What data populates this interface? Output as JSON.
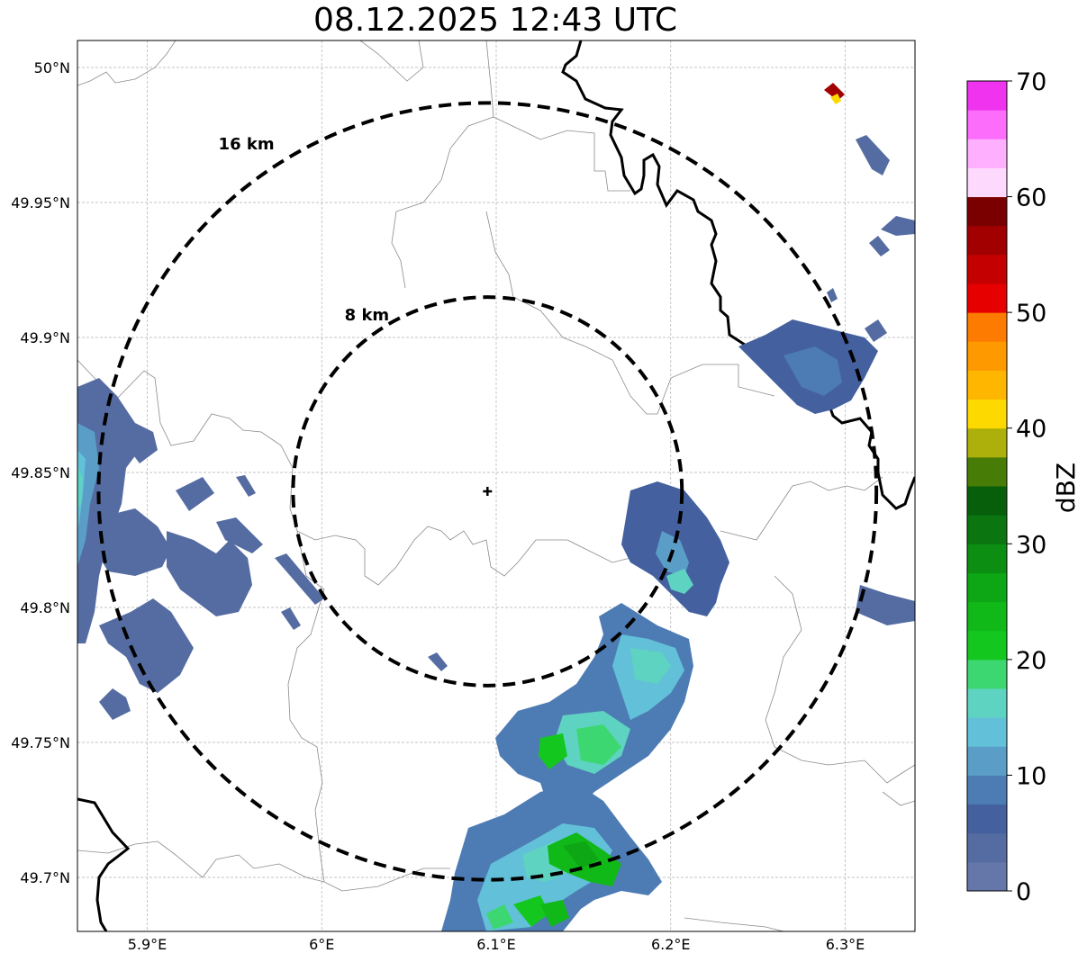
{
  "title": "08.12.2025 12:43 UTC",
  "map": {
    "lon_range": [
      5.86,
      6.34
    ],
    "lat_range": [
      49.68,
      50.01
    ],
    "grid": true,
    "center": {
      "lon": 6.095,
      "lat": 49.843
    },
    "x_ticks": [
      {
        "value": 5.9,
        "label": "5.9°E"
      },
      {
        "value": 6.0,
        "label": "6°E"
      },
      {
        "value": 6.1,
        "label": "6.1°E"
      },
      {
        "value": 6.2,
        "label": "6.2°E"
      },
      {
        "value": 6.3,
        "label": "6.3°E"
      }
    ],
    "y_ticks": [
      {
        "value": 50.0,
        "label": "50°N"
      },
      {
        "value": 49.95,
        "label": "49.95°N"
      },
      {
        "value": 49.9,
        "label": "49.9°N"
      },
      {
        "value": 49.85,
        "label": "49.85°N"
      },
      {
        "value": 49.8,
        "label": "49.8°N"
      },
      {
        "value": 49.75,
        "label": "49.75°N"
      },
      {
        "value": 49.7,
        "label": "49.7°N"
      }
    ],
    "rings": [
      {
        "radius_km": 8,
        "label": "8 km"
      },
      {
        "radius_km": 16,
        "label": "16 km"
      }
    ]
  },
  "colorbar": {
    "label": "dBZ",
    "min": 0,
    "max": 70,
    "tick_labels": [
      "0",
      "10",
      "20",
      "30",
      "40",
      "50",
      "60",
      "70"
    ],
    "colors": [
      "#6577a8",
      "#556ca2",
      "#44609f",
      "#4d7cb4",
      "#5a9ec8",
      "#62c0d8",
      "#5ed3c1",
      "#3dd772",
      "#14c71e",
      "#10b818",
      "#0da614",
      "#0b8e11",
      "#0b7510",
      "#075f0b",
      "#477c07",
      "#adaf0a",
      "#fed900",
      "#feb600",
      "#fe9900",
      "#fd7b00",
      "#e70000",
      "#c40000",
      "#a20000",
      "#7a0000",
      "#fed9fe",
      "#feb0fe",
      "#fc6dfc",
      "#ef33ef"
    ]
  }
}
